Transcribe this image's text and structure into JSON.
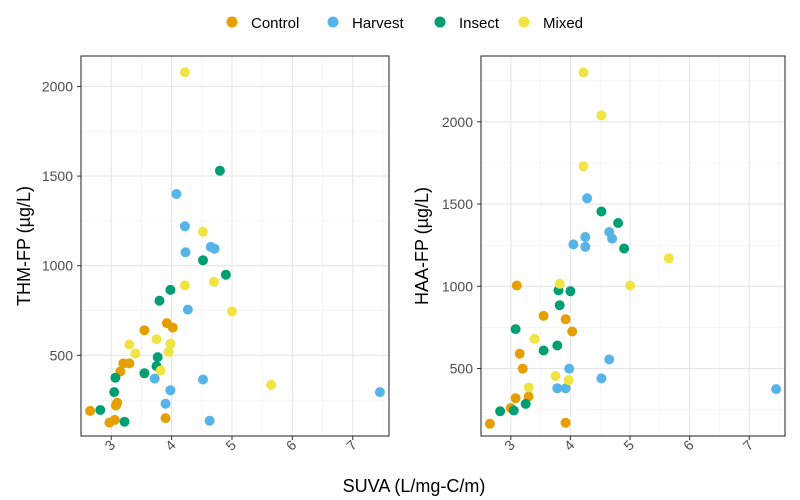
{
  "chart_data": {
    "type": "scatter",
    "xlabel": "SUVA (L/mg-C/m)",
    "legend": {
      "position": "top",
      "entries": [
        {
          "name": "Control",
          "color": "#E69F00"
        },
        {
          "name": "Harvest",
          "color": "#56B4E9"
        },
        {
          "name": "Insect",
          "color": "#009E73"
        },
        {
          "name": "Mixed",
          "color": "#F0E442"
        }
      ]
    },
    "panels": [
      {
        "ylabel": "THM-FP (µg/L)",
        "xlim": [
          2.5,
          7.6
        ],
        "ylim": [
          50,
          2170
        ],
        "xticks": [
          3,
          4,
          5,
          6,
          7
        ],
        "yticks": [
          500,
          1000,
          1500,
          2000
        ],
        "grid": true,
        "series": [
          {
            "name": "Control",
            "points": [
              [
                2.65,
                190
              ],
              [
                2.97,
                125
              ],
              [
                3.06,
                140
              ],
              [
                3.08,
                220
              ],
              [
                3.1,
                235
              ],
              [
                3.15,
                410
              ],
              [
                3.2,
                455
              ],
              [
                3.3,
                455
              ],
              [
                3.55,
                640
              ],
              [
                3.9,
                150
              ],
              [
                3.92,
                680
              ],
              [
                4.02,
                655
              ]
            ]
          },
          {
            "name": "Harvest",
            "points": [
              [
                3.72,
                370
              ],
              [
                3.9,
                230
              ],
              [
                3.98,
                305
              ],
              [
                4.08,
                1400
              ],
              [
                4.22,
                1220
              ],
              [
                4.23,
                1075
              ],
              [
                4.27,
                755
              ],
              [
                4.52,
                365
              ],
              [
                4.63,
                135
              ],
              [
                4.65,
                1105
              ],
              [
                4.71,
                1095
              ],
              [
                7.45,
                295
              ]
            ]
          },
          {
            "name": "Insect",
            "points": [
              [
                2.82,
                195
              ],
              [
                3.05,
                295
              ],
              [
                3.07,
                375
              ],
              [
                3.22,
                130
              ],
              [
                3.55,
                400
              ],
              [
                3.75,
                440
              ],
              [
                3.77,
                490
              ],
              [
                3.8,
                805
              ],
              [
                3.98,
                865
              ],
              [
                4.52,
                1030
              ],
              [
                4.8,
                1530
              ],
              [
                4.9,
                950
              ]
            ]
          },
          {
            "name": "Mixed",
            "points": [
              [
                3.3,
                560
              ],
              [
                3.4,
                510
              ],
              [
                3.75,
                590
              ],
              [
                3.82,
                415
              ],
              [
                3.95,
                520
              ],
              [
                3.98,
                565
              ],
              [
                4.22,
                890
              ],
              [
                4.22,
                2080
              ],
              [
                4.52,
                1190
              ],
              [
                4.7,
                910
              ],
              [
                5.0,
                745
              ],
              [
                5.65,
                335
              ]
            ]
          }
        ]
      },
      {
        "ylabel": "HAA-FP (µg/L)",
        "xlim": [
          2.5,
          7.6
        ],
        "ylim": [
          90,
          2400
        ],
        "xticks": [
          3,
          4,
          5,
          6,
          7
        ],
        "yticks": [
          500,
          1000,
          1500,
          2000
        ],
        "grid": true,
        "series": [
          {
            "name": "Control",
            "points": [
              [
                2.65,
                165
              ],
              [
                3.0,
                260
              ],
              [
                3.08,
                320
              ],
              [
                3.1,
                1005
              ],
              [
                3.15,
                590
              ],
              [
                3.2,
                500
              ],
              [
                3.3,
                330
              ],
              [
                3.55,
                820
              ],
              [
                3.92,
                800
              ],
              [
                3.92,
                170
              ],
              [
                4.03,
                725
              ]
            ]
          },
          {
            "name": "Harvest",
            "points": [
              [
                3.78,
                380
              ],
              [
                3.92,
                380
              ],
              [
                3.98,
                500
              ],
              [
                4.05,
                1255
              ],
              [
                4.25,
                1300
              ],
              [
                4.25,
                1240
              ],
              [
                4.28,
                1535
              ],
              [
                4.52,
                440
              ],
              [
                4.65,
                555
              ],
              [
                4.65,
                1330
              ],
              [
                4.7,
                1290
              ],
              [
                7.45,
                375
              ]
            ]
          },
          {
            "name": "Insect",
            "points": [
              [
                2.82,
                240
              ],
              [
                3.05,
                245
              ],
              [
                3.08,
                740
              ],
              [
                3.25,
                285
              ],
              [
                3.55,
                610
              ],
              [
                3.78,
                640
              ],
              [
                3.8,
                975
              ],
              [
                3.82,
                885
              ],
              [
                4.0,
                970
              ],
              [
                4.52,
                1455
              ],
              [
                4.8,
                1385
              ],
              [
                4.9,
                1230
              ]
            ]
          },
          {
            "name": "Mixed",
            "points": [
              [
                3.3,
                385
              ],
              [
                3.4,
                680
              ],
              [
                3.75,
                455
              ],
              [
                3.82,
                1015
              ],
              [
                3.97,
                430
              ],
              [
                4.22,
                2300
              ],
              [
                4.22,
                1730
              ],
              [
                4.52,
                2040
              ],
              [
                5.0,
                1005
              ],
              [
                5.65,
                1170
              ]
            ]
          }
        ]
      }
    ]
  }
}
